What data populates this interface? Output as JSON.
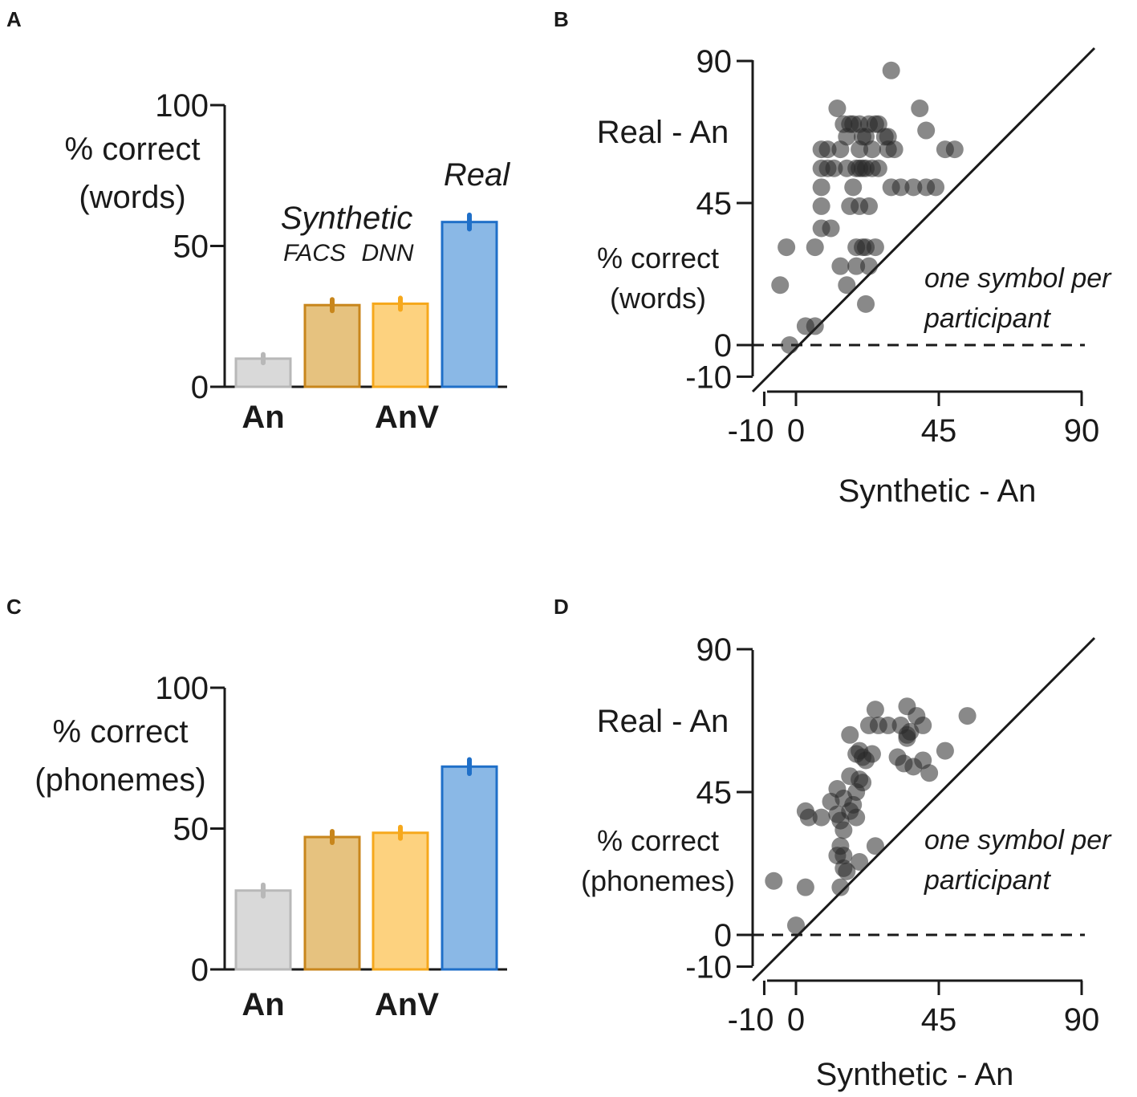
{
  "chart_data": [
    {
      "panel": "A",
      "type": "bar",
      "categories": [
        "An",
        "AnV FACS",
        "AnV DNN",
        "AnV Real"
      ],
      "values": [
        10,
        29,
        29.5,
        58.5
      ],
      "error": [
        1.5,
        2,
        2,
        2.5
      ],
      "group_labels": [
        "An",
        "AnV"
      ],
      "annotations": {
        "synthetic": "Synthetic",
        "facs": "FACS",
        "dnn": "DNN",
        "real": "Real"
      },
      "ylabel": [
        "% correct",
        "(words)"
      ],
      "yticks": [
        0,
        50,
        100
      ],
      "ylim": [
        0,
        100
      ],
      "colors": {
        "fill": [
          "#d9d9d9",
          "#e6c27f",
          "#fdd27f",
          "#8ab8e6"
        ],
        "stroke": [
          "#b8b8b8",
          "#c8861c",
          "#f6a81c",
          "#1f6fc8"
        ]
      }
    },
    {
      "panel": "B",
      "type": "scatter",
      "xlabel": "Synthetic - An",
      "ylabel_title": "Real - An",
      "ylabel": [
        "% correct",
        "(words)"
      ],
      "xticks": [
        -10,
        0,
        45,
        90
      ],
      "yticks": [
        -10,
        0,
        45,
        90
      ],
      "xlim": [
        -10,
        90
      ],
      "ylim": [
        -10,
        90
      ],
      "note": [
        "one symbol per",
        "participant"
      ],
      "x": [
        30,
        13,
        20,
        26,
        39,
        15,
        17,
        18,
        23,
        25,
        41,
        16,
        21,
        22,
        28,
        29,
        50,
        8,
        10,
        14,
        20,
        24,
        29,
        31,
        47,
        8,
        10,
        12,
        16,
        19,
        20,
        21,
        22,
        24,
        26,
        8,
        18,
        30,
        33,
        37,
        41,
        44,
        8,
        17,
        20,
        23,
        8,
        11,
        19,
        21,
        25,
        22,
        -3,
        6,
        14,
        19,
        23,
        16,
        -5,
        22,
        3,
        6,
        -2
      ],
      "y": [
        87,
        75,
        70,
        70,
        75,
        70,
        70,
        70,
        70,
        70,
        68,
        66,
        66,
        66,
        66,
        66,
        62,
        62,
        62,
        62,
        62,
        62,
        62,
        62,
        62,
        56,
        56,
        56,
        56,
        56,
        56,
        56,
        56,
        56,
        56,
        50,
        50,
        50,
        50,
        50,
        50,
        50,
        44,
        44,
        44,
        44,
        37,
        37,
        31,
        31,
        31,
        31,
        31,
        31,
        25,
        25,
        25,
        19,
        19,
        13,
        6,
        6,
        0
      ]
    },
    {
      "panel": "C",
      "type": "bar",
      "categories": [
        "An",
        "AnV FACS",
        "AnV DNN",
        "AnV Real"
      ],
      "values": [
        28,
        47,
        48.5,
        72
      ],
      "error": [
        2,
        2,
        2,
        2.5
      ],
      "group_labels": [
        "An",
        "AnV"
      ],
      "ylabel": [
        "% correct",
        "(phonemes)"
      ],
      "yticks": [
        0,
        50,
        100
      ],
      "ylim": [
        0,
        100
      ],
      "colors": {
        "fill": [
          "#d9d9d9",
          "#e6c27f",
          "#fdd27f",
          "#8ab8e6"
        ],
        "stroke": [
          "#b8b8b8",
          "#c8861c",
          "#f6a81c",
          "#1f6fc8"
        ]
      }
    },
    {
      "panel": "D",
      "type": "scatter",
      "xlabel": "Synthetic - An",
      "ylabel_title": "Real - An",
      "ylabel": [
        "% correct",
        "(phonemes)"
      ],
      "xticks": [
        -10,
        0,
        45,
        90
      ],
      "yticks": [
        -10,
        0,
        45,
        90
      ],
      "xlim": [
        -10,
        90
      ],
      "ylim": [
        -10,
        90
      ],
      "note": [
        "one symbol per",
        "participant"
      ],
      "x": [
        35,
        25,
        38,
        54,
        23,
        26,
        29,
        33,
        35,
        40,
        35,
        36,
        17,
        20,
        24,
        32,
        40,
        47,
        19,
        21,
        22,
        34,
        37,
        42,
        17,
        20,
        21,
        13,
        19,
        15,
        11,
        18,
        17,
        13,
        19,
        3,
        4,
        8,
        14,
        15,
        14,
        25,
        15,
        13,
        20,
        15,
        16,
        -7,
        3,
        14,
        0
      ],
      "y": [
        72,
        71,
        69,
        69,
        66,
        66,
        66,
        66,
        63,
        66,
        62,
        64,
        63,
        58,
        57,
        56,
        55,
        58,
        57,
        56,
        55,
        54,
        53,
        51,
        50,
        49,
        48,
        46,
        45,
        43,
        42,
        41,
        39,
        38,
        37,
        39,
        37,
        37,
        36,
        33,
        28,
        28,
        25,
        25,
        23,
        21,
        20,
        17,
        15,
        15,
        3
      ]
    }
  ]
}
